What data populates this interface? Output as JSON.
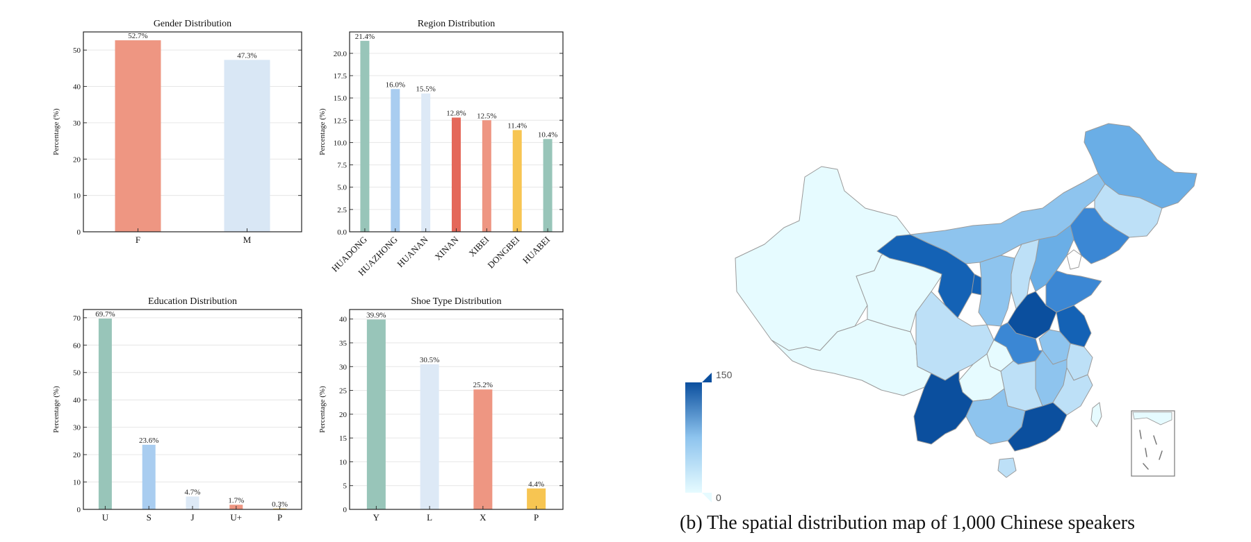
{
  "caption": "(b) The spatial distribution map of 1,000 Chinese speakers",
  "map": {
    "legend_max": "150",
    "legend_min": "0",
    "colors": {
      "low": "#e6fbff",
      "mid": "#8ec4ee",
      "high": "#0b4f9e",
      "border": "#9a9a9a"
    }
  },
  "chart_data": [
    {
      "type": "bar",
      "title": "Gender Distribution",
      "ylabel": "Percentage (%)",
      "xlabel": "",
      "categories": [
        "F",
        "M"
      ],
      "values": [
        52.7,
        47.3
      ],
      "value_labels": [
        "52.7%",
        "47.3%"
      ],
      "colors": [
        "#ee9682",
        "#d9e7f5"
      ],
      "ylim": [
        0,
        55
      ],
      "yticks": [
        0,
        10,
        20,
        30,
        40,
        50
      ],
      "ytick_labels": [
        "0",
        "10",
        "20",
        "30",
        "40",
        "50"
      ],
      "grid": true
    },
    {
      "type": "bar",
      "title": "Region Distribution",
      "ylabel": "Percentage (%)",
      "xlabel": "",
      "categories": [
        "HUADONG",
        "HUAZHONG",
        "HUANAN",
        "XINAN",
        "XIBEI",
        "DONGBEI",
        "HUABEI"
      ],
      "values": [
        21.4,
        16.0,
        15.5,
        12.8,
        12.5,
        11.4,
        10.4
      ],
      "value_labels": [
        "21.4%",
        "16.0%",
        "15.5%",
        "12.8%",
        "12.5%",
        "11.4%",
        "10.4%"
      ],
      "colors": [
        "#98c5b9",
        "#a9cdf0",
        "#dde9f6",
        "#e4685a",
        "#ee9682",
        "#f7c552",
        "#98c5b9"
      ],
      "ylim": [
        0,
        22.4
      ],
      "yticks": [
        0,
        2.5,
        5,
        7.5,
        10,
        12.5,
        15,
        17.5,
        20
      ],
      "ytick_labels": [
        "0.0",
        "2.5",
        "5.0",
        "7.5",
        "10.0",
        "12.5",
        "15.0",
        "17.5",
        "20.0"
      ],
      "grid": true
    },
    {
      "type": "bar",
      "title": "Education Distribution",
      "ylabel": "Percentage (%)",
      "xlabel": "",
      "categories": [
        "U",
        "S",
        "J",
        "U+",
        "P"
      ],
      "values": [
        69.7,
        23.6,
        4.7,
        1.7,
        0.3
      ],
      "value_labels": [
        "69.7%",
        "23.6%",
        "4.7%",
        "1.7%",
        "0.3%"
      ],
      "colors": [
        "#98c5b9",
        "#a9cdf0",
        "#dde9f6",
        "#ee9682",
        "#f7c552"
      ],
      "ylim": [
        0,
        73
      ],
      "yticks": [
        0,
        10,
        20,
        30,
        40,
        50,
        60,
        70
      ],
      "ytick_labels": [
        "0",
        "10",
        "20",
        "30",
        "40",
        "50",
        "60",
        "70"
      ],
      "grid": true
    },
    {
      "type": "bar",
      "title": "Shoe Type Distribution",
      "ylabel": "Percentage (%)",
      "xlabel": "",
      "categories": [
        "Y",
        "L",
        "X",
        "P"
      ],
      "values": [
        39.9,
        30.5,
        25.2,
        4.4
      ],
      "value_labels": [
        "39.9%",
        "30.5%",
        "25.2%",
        "4.4%"
      ],
      "colors": [
        "#98c5b9",
        "#dde9f6",
        "#ee9682",
        "#f7c552"
      ],
      "ylim": [
        0,
        42
      ],
      "yticks": [
        0,
        5,
        10,
        15,
        20,
        25,
        30,
        35,
        40
      ],
      "ytick_labels": [
        "0",
        "5",
        "10",
        "15",
        "20",
        "25",
        "30",
        "35",
        "40"
      ],
      "grid": true
    }
  ]
}
